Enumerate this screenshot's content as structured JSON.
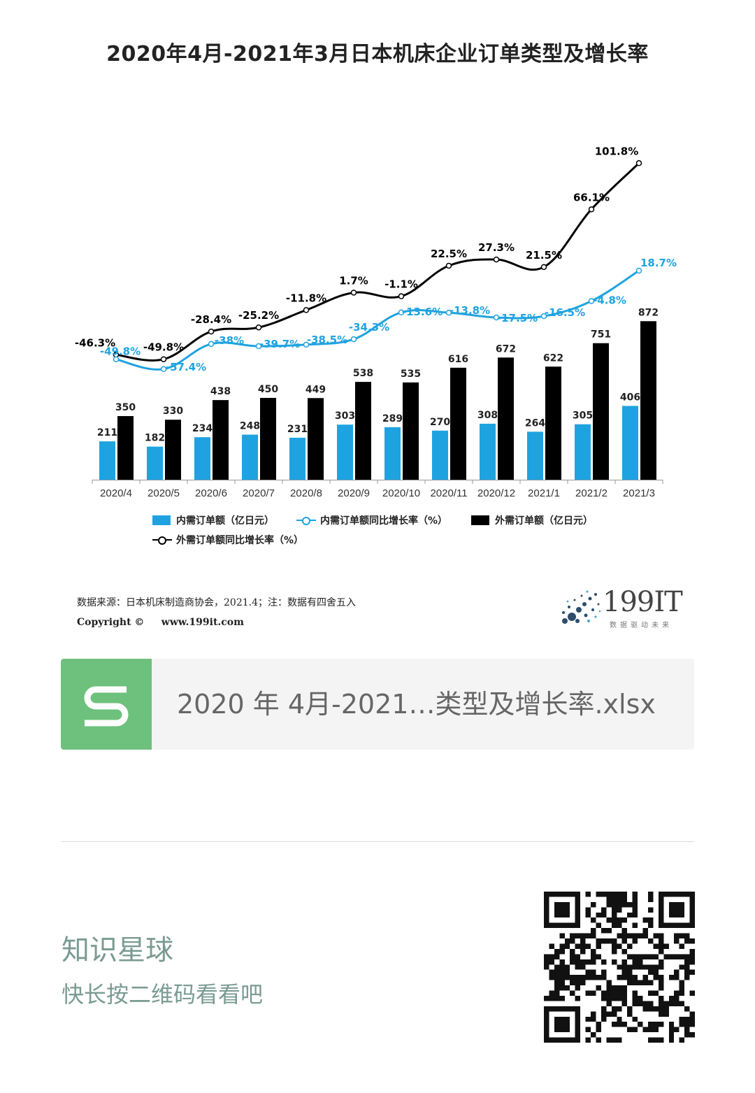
{
  "chart_data": {
    "type": "bar+line",
    "title": "2020年4月-2021年3月日本机床企业订单类型及增长率",
    "categories": [
      "2020/4",
      "2020/5",
      "2020/6",
      "2020/7",
      "2020/8",
      "2020/9",
      "2020/10",
      "2020/11",
      "2020/12",
      "2021/1",
      "2021/2",
      "2021/3"
    ],
    "series": [
      {
        "name": "内需订单额（亿日元）",
        "type": "bar",
        "color": "#1fa3e0",
        "values": [
          211,
          182,
          234,
          248,
          231,
          303,
          289,
          270,
          308,
          264,
          305,
          406
        ]
      },
      {
        "name": "外需订单额（亿日元）",
        "type": "bar",
        "color": "#000000",
        "values": [
          350,
          330,
          438,
          450,
          449,
          538,
          535,
          616,
          672,
          622,
          751,
          872
        ]
      },
      {
        "name": "内需订单额同比增长率（%）",
        "type": "line",
        "color": "#1fa3e0",
        "values": [
          -49.8,
          -57.4,
          -38,
          -39.7,
          -38.5,
          -34.3,
          -13.6,
          -13.8,
          -17.5,
          -16.5,
          -4.8,
          18.7
        ],
        "labels": [
          "-49.8%",
          "-57.4%",
          "-38%",
          "-39.7%",
          "-38.5%",
          "-34.3%",
          "-13.6%",
          "-13.8%",
          "-17.5%",
          "-16.5%",
          "-4.8%",
          "18.7%"
        ]
      },
      {
        "name": "外需订单额同比增长率（%）",
        "type": "line",
        "color": "#000000",
        "values": [
          -46.3,
          -49.8,
          -28.4,
          -25.2,
          -11.8,
          1.7,
          -1.1,
          22.5,
          27.3,
          21.5,
          66.1,
          101.8
        ],
        "labels": [
          "-46.3%",
          "-49.8%",
          "-28.4%",
          "-25.2%",
          "-11.8%",
          "1.7%",
          "-1.1%",
          "22.5%",
          "27.3%",
          "21.5%",
          "66.1%",
          "101.8%"
        ]
      }
    ],
    "legend": [
      "内需订单额（亿日元）",
      "内需订单额同比增长率（%）",
      "外需订单额（亿日元）",
      "外需订单额同比增长率（%）"
    ],
    "legend_position": "bottom"
  },
  "source_line": "数据来源：日本机床制造商协会，2021.4；注：数据有四舍五入",
  "copyright_line": "Copyright ©     www.199it.com",
  "logo": {
    "text": "199IT",
    "subtitle": "数据驱动未来"
  },
  "file": {
    "name": "2020 年 4月-2021…类型及增长率.xlsx",
    "icon": "spreadsheet-s-icon"
  },
  "promo": {
    "title": "知识星球",
    "subtitle": "快长按二维码看看吧"
  }
}
